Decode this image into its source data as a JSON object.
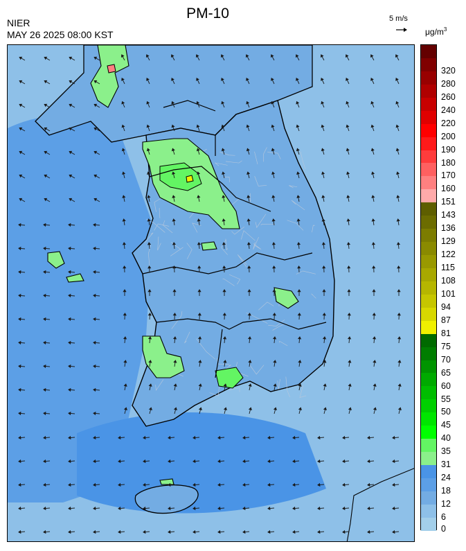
{
  "header": {
    "title": "PM-10",
    "organization": "NIER",
    "datetime": "MAY 26 2025 08:00 KST"
  },
  "wind_scale": {
    "label": "5 m/s",
    "arrow_glyph": "→"
  },
  "legend": {
    "unit_base": "μg/m",
    "unit_exp": "3",
    "levels": [
      {
        "label": "0",
        "color": "#a3cfea"
      },
      {
        "label": "6",
        "color": "#8ec0e8"
      },
      {
        "label": "12",
        "color": "#73ace3"
      },
      {
        "label": "18",
        "color": "#5c9fe6"
      },
      {
        "label": "24",
        "color": "#4a94e6"
      },
      {
        "label": "31",
        "color": "#8bf08b"
      },
      {
        "label": "35",
        "color": "#63f563"
      },
      {
        "label": "40",
        "color": "#00ff00"
      },
      {
        "label": "45",
        "color": "#00e600"
      },
      {
        "label": "50",
        "color": "#00d000"
      },
      {
        "label": "55",
        "color": "#00bd00"
      },
      {
        "label": "60",
        "color": "#00aa00"
      },
      {
        "label": "65",
        "color": "#009400"
      },
      {
        "label": "70",
        "color": "#007d00"
      },
      {
        "label": "75",
        "color": "#006a00"
      },
      {
        "label": "81",
        "color": "#f0f000"
      },
      {
        "label": "87",
        "color": "#d8d800"
      },
      {
        "label": "94",
        "color": "#c6c600"
      },
      {
        "label": "101",
        "color": "#b6b600"
      },
      {
        "label": "108",
        "color": "#a8a800"
      },
      {
        "label": "115",
        "color": "#999900"
      },
      {
        "label": "122",
        "color": "#8a8a00"
      },
      {
        "label": "129",
        "color": "#7c7c00"
      },
      {
        "label": "136",
        "color": "#6c6c00"
      },
      {
        "label": "143",
        "color": "#5e5e00"
      },
      {
        "label": "151",
        "color": "#ffaaaa"
      },
      {
        "label": "160",
        "color": "#ff8080"
      },
      {
        "label": "170",
        "color": "#ff6060"
      },
      {
        "label": "180",
        "color": "#ff3c3c"
      },
      {
        "label": "190",
        "color": "#ff1a1a"
      },
      {
        "label": "200",
        "color": "#ff0000"
      },
      {
        "label": "220",
        "color": "#e00000"
      },
      {
        "label": "240",
        "color": "#c80000"
      },
      {
        "label": "260",
        "color": "#b00000"
      },
      {
        "label": "280",
        "color": "#980000"
      },
      {
        "label": "320",
        "color": "#800000"
      },
      {
        "label": "",
        "color": "#640000"
      }
    ]
  },
  "map_colors": {
    "sea_far": "#8ec0e8",
    "sea_near": "#5c9fe6",
    "sea_deep": "#4a94e6",
    "land": "#73ace3",
    "land_east": "#8ec0e8",
    "green_light": "#8bf08b",
    "green_mid": "#63f563",
    "green_strong": "#00e600",
    "hotspot": "#ff8080",
    "yellow": "#f0f000",
    "boundary": "#000000",
    "district_line": "#b8c8dc",
    "wind_arrow": "#1a1a1a"
  }
}
